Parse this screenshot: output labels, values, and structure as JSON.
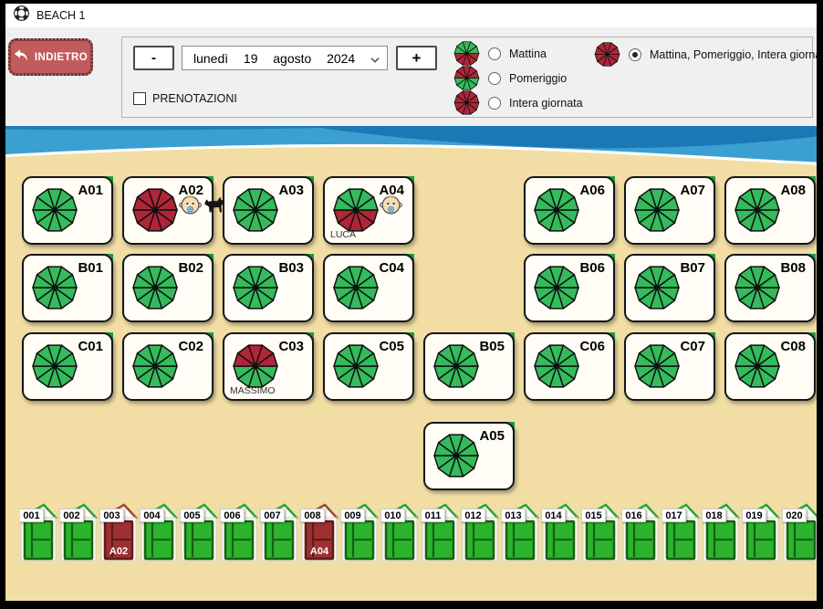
{
  "window": {
    "title": "BEACH 1"
  },
  "toolbar": {
    "back_label": "INDIETRO",
    "minus_label": "-",
    "plus_label": "+",
    "date": {
      "weekday": "lunedì",
      "day": "19",
      "month": "agosto",
      "year": "2024"
    },
    "prenotazioni_label": "PRENOTAZIONI",
    "prenotazioni_checked": false,
    "periods": [
      {
        "label": "Mattina",
        "selected": false,
        "umbrella": "green-red"
      },
      {
        "label": "Pomeriggio",
        "selected": false,
        "umbrella": "red-green"
      },
      {
        "label": "Intera giornata",
        "selected": false,
        "umbrella": "red"
      },
      {
        "label": "Mattina, Pomeriggio, Intera giornata",
        "selected": true,
        "umbrella": "red"
      }
    ]
  },
  "colors": {
    "sand": "#f2dea4",
    "sea_light": "#3b9fd2",
    "sea_dark": "#1a79b5",
    "umbrella_green": "#33bb5c",
    "umbrella_red": "#b02537",
    "back_button_red": "#c25c5c",
    "cabin_door_green": "#2cb42c",
    "cabin_door_red": "#9c3032"
  },
  "spots": [
    {
      "id": "A01",
      "col": 0,
      "row": 0,
      "umbrella": "green"
    },
    {
      "id": "A02",
      "col": 1,
      "row": 0,
      "umbrella": "red",
      "icons": [
        "baby",
        "dog"
      ]
    },
    {
      "id": "A03",
      "col": 2,
      "row": 0,
      "umbrella": "green"
    },
    {
      "id": "A04",
      "col": 3,
      "row": 0,
      "umbrella": "green-red",
      "icons": [
        "baby"
      ],
      "note": "LUCA"
    },
    {
      "id": "A06",
      "col": 5,
      "row": 0,
      "umbrella": "green"
    },
    {
      "id": "A07",
      "col": 6,
      "row": 0,
      "umbrella": "green"
    },
    {
      "id": "A08",
      "col": 7,
      "row": 0,
      "umbrella": "green"
    },
    {
      "id": "B01",
      "col": 0,
      "row": 1,
      "umbrella": "green"
    },
    {
      "id": "B02",
      "col": 1,
      "row": 1,
      "umbrella": "green"
    },
    {
      "id": "B03",
      "col": 2,
      "row": 1,
      "umbrella": "green"
    },
    {
      "id": "C04",
      "col": 3,
      "row": 1,
      "umbrella": "green"
    },
    {
      "id": "B06",
      "col": 5,
      "row": 1,
      "umbrella": "green"
    },
    {
      "id": "B07",
      "col": 6,
      "row": 1,
      "umbrella": "green"
    },
    {
      "id": "B08",
      "col": 7,
      "row": 1,
      "umbrella": "green"
    },
    {
      "id": "C01",
      "col": 0,
      "row": 2,
      "umbrella": "green"
    },
    {
      "id": "C02",
      "col": 1,
      "row": 2,
      "umbrella": "green"
    },
    {
      "id": "C03",
      "col": 2,
      "row": 2,
      "umbrella": "red-green",
      "note": "MASSIMO"
    },
    {
      "id": "C05",
      "col": 3,
      "row": 2,
      "umbrella": "green"
    },
    {
      "id": "B05",
      "col": 4,
      "row": 2,
      "umbrella": "green"
    },
    {
      "id": "C06",
      "col": 5,
      "row": 2,
      "umbrella": "green"
    },
    {
      "id": "C07",
      "col": 6,
      "row": 2,
      "umbrella": "green"
    },
    {
      "id": "C08",
      "col": 7,
      "row": 2,
      "umbrella": "green"
    },
    {
      "id": "A05",
      "col": 4,
      "row": 3,
      "umbrella": "green"
    }
  ],
  "cabins": [
    {
      "number": "001",
      "state": "free"
    },
    {
      "number": "002",
      "state": "free"
    },
    {
      "number": "003",
      "state": "occupied",
      "assigned": "A02"
    },
    {
      "number": "004",
      "state": "free"
    },
    {
      "number": "005",
      "state": "free"
    },
    {
      "number": "006",
      "state": "free"
    },
    {
      "number": "007",
      "state": "free"
    },
    {
      "number": "008",
      "state": "occupied",
      "assigned": "A04"
    },
    {
      "number": "009",
      "state": "free"
    },
    {
      "number": "010",
      "state": "free"
    },
    {
      "number": "011",
      "state": "free"
    },
    {
      "number": "012",
      "state": "free"
    },
    {
      "number": "013",
      "state": "free"
    },
    {
      "number": "014",
      "state": "free"
    },
    {
      "number": "015",
      "state": "free"
    },
    {
      "number": "016",
      "state": "free"
    },
    {
      "number": "017",
      "state": "free"
    },
    {
      "number": "018",
      "state": "free"
    },
    {
      "number": "019",
      "state": "free"
    },
    {
      "number": "020",
      "state": "free"
    }
  ]
}
